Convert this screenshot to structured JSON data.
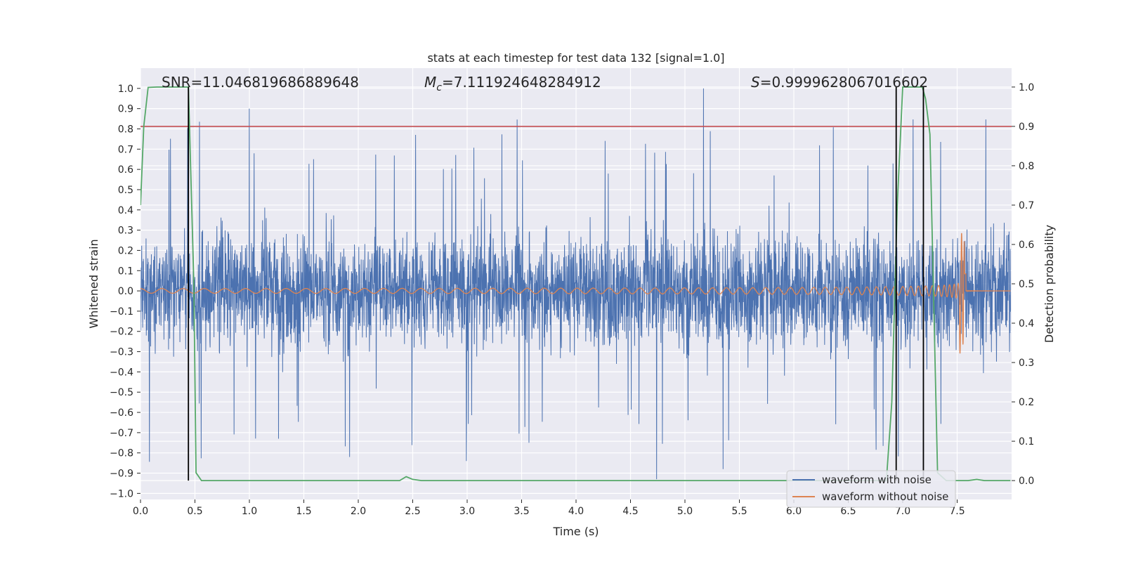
{
  "chart_data": {
    "type": "line",
    "title": "stats at each timestep for test data 132 [signal=1.0]",
    "xlabel": "Time (s)",
    "ylabel": "Whitened strain",
    "y2label": "Detection probability",
    "xlim": [
      0.0,
      8.0
    ],
    "ylim": [
      -1.03,
      1.1
    ],
    "y2lim": [
      -0.048,
      1.048
    ],
    "x_ticks": [
      "0.0",
      "0.5",
      "1.0",
      "1.5",
      "2.0",
      "2.5",
      "3.0",
      "3.5",
      "4.0",
      "4.5",
      "5.0",
      "5.5",
      "6.0",
      "6.5",
      "7.0",
      "7.5"
    ],
    "y_ticks": [
      "−1.0",
      "−0.9",
      "−0.8",
      "−0.7",
      "−0.6",
      "−0.5",
      "−0.4",
      "−0.3",
      "−0.2",
      "−0.1",
      "0.0",
      "0.1",
      "0.2",
      "0.3",
      "0.4",
      "0.5",
      "0.6",
      "0.7",
      "0.8",
      "0.9",
      "1.0"
    ],
    "y2_ticks": [
      "0.0",
      "0.1",
      "0.2",
      "0.3",
      "0.4",
      "0.5",
      "0.6",
      "0.7",
      "0.8",
      "0.9",
      "1.0"
    ],
    "annotations": [
      {
        "label": "SNR=11.046819686889648",
        "x": 0.2
      },
      {
        "label": "=7.111924648284912",
        "symbol": "M",
        "subscript": "c",
        "x": 2.6
      },
      {
        "label": "=0.9999628067016602",
        "symbol": "S",
        "x": 5.6
      }
    ],
    "threshold_line": {
      "y2": 0.9,
      "color": "#c44e52"
    },
    "vertical_lines": [
      0.44,
      6.94,
      7.19
    ],
    "series": [
      {
        "name": "waveform with noise",
        "color": "#4c72b0",
        "std": 0.2,
        "notable_peaks": [
          [
            1.0,
            0.9
          ],
          [
            5.17,
            1.0
          ],
          [
            4.74,
            -0.93
          ],
          [
            5.35,
            -0.88
          ],
          [
            1.92,
            -0.82
          ]
        ]
      },
      {
        "name": "waveform without noise",
        "color": "#dd8452",
        "chirp_merger_time": 7.58,
        "peak_amplitude": 0.32
      },
      {
        "name": "detection probability",
        "color": "#55a868",
        "axis": "right",
        "points": [
          [
            0.0,
            0.7
          ],
          [
            0.03,
            0.9
          ],
          [
            0.07,
            0.999
          ],
          [
            0.15,
            1.0
          ],
          [
            0.44,
            1.0
          ],
          [
            0.49,
            0.5
          ],
          [
            0.51,
            0.02
          ],
          [
            0.56,
            0.0
          ],
          [
            2.3,
            0.0
          ],
          [
            2.38,
            0.0
          ],
          [
            2.44,
            0.01
          ],
          [
            2.5,
            0.003
          ],
          [
            2.58,
            0.0
          ],
          [
            6.85,
            0.0
          ],
          [
            6.9,
            0.2
          ],
          [
            6.95,
            0.7
          ],
          [
            7.0,
            1.0
          ],
          [
            7.18,
            1.0
          ],
          [
            7.21,
            0.97
          ],
          [
            7.25,
            0.88
          ],
          [
            7.32,
            0.02
          ],
          [
            7.4,
            0.0
          ],
          [
            7.6,
            0.0
          ],
          [
            7.68,
            0.003
          ],
          [
            7.75,
            0.0
          ],
          [
            7.99,
            0.0
          ]
        ]
      }
    ],
    "legend": {
      "location": "lower-right",
      "entries": [
        "waveform with noise",
        "waveform without noise"
      ]
    },
    "grid": true
  }
}
